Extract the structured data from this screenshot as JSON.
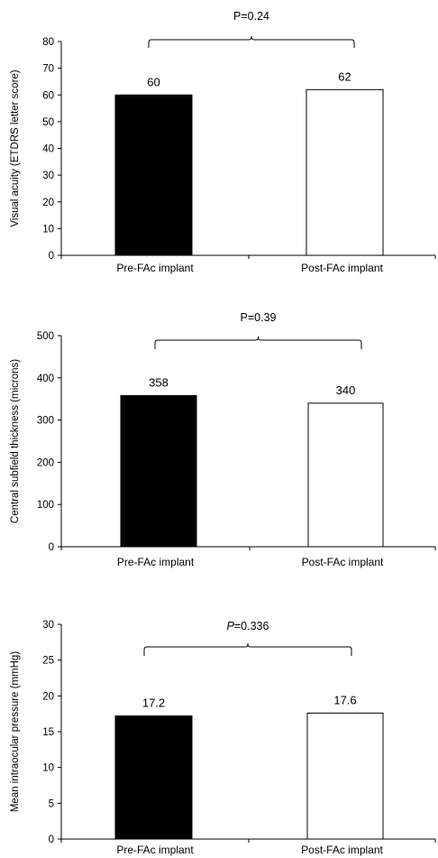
{
  "chart_data": [
    {
      "type": "bar",
      "categories": [
        "Pre-FAc implant",
        "Post-FAc implant"
      ],
      "values": [
        60,
        62
      ],
      "value_labels": [
        "60",
        "62"
      ],
      "bar_colors": [
        "#000000",
        "#ffffff"
      ],
      "ylabel": "Visual acuity (ETDRS letter score)",
      "ylim": [
        0,
        80
      ],
      "yticks": [
        0,
        10,
        20,
        30,
        40,
        50,
        60,
        70,
        80
      ],
      "p_label": "P=0.24",
      "p_italic": false,
      "grid": false
    },
    {
      "type": "bar",
      "categories": [
        "Pre-FAc implant",
        "Post-FAc implant"
      ],
      "values": [
        358,
        340
      ],
      "value_labels": [
        "358",
        "340"
      ],
      "bar_colors": [
        "#000000",
        "#ffffff"
      ],
      "ylabel": "Central subfield thickness (microns)",
      "ylim": [
        0,
        500
      ],
      "yticks": [
        0,
        100,
        200,
        300,
        400,
        500
      ],
      "p_label": "P=0.39",
      "p_italic": false,
      "grid": false
    },
    {
      "type": "bar",
      "categories": [
        "Pre-FAc implant",
        "Post-FAc implant"
      ],
      "values": [
        17.2,
        17.6
      ],
      "value_labels": [
        "17.2",
        "17.6"
      ],
      "bar_colors": [
        "#000000",
        "#ffffff"
      ],
      "ylabel": "Mean intraocular pressure (mmHg)",
      "ylim": [
        0,
        30
      ],
      "yticks": [
        0,
        5,
        10,
        15,
        20,
        25,
        30
      ],
      "p_label": "P=0.336",
      "p_italic": true,
      "grid": false
    }
  ]
}
